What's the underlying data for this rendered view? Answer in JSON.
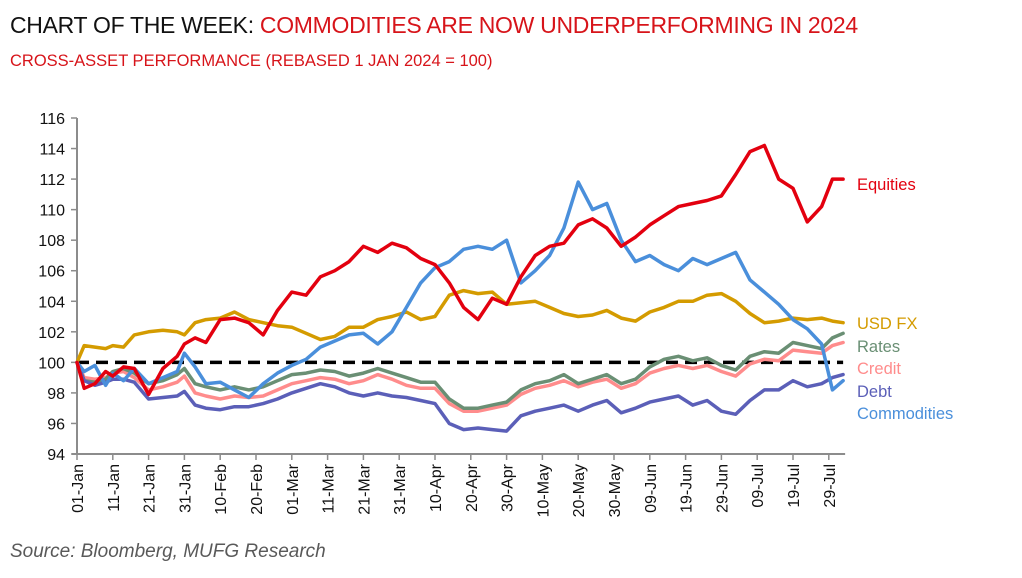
{
  "header": {
    "title_lead": "CHART OF THE WEEK:",
    "title_rest": "COMMODITIES ARE NOW UNDERPERFORMING IN 2024",
    "subtitle": "CROSS-ASSET PERFORMANCE (REBASED 1 JAN 2024 = 100)"
  },
  "footer": {
    "source": "Source: Bloomberg, MUFG Research"
  },
  "chart_data": {
    "type": "line",
    "title": "CROSS-ASSET PERFORMANCE (REBASED 1 JAN 2024 = 100)",
    "xlabel": "",
    "ylabel": "",
    "ylim": [
      94,
      116
    ],
    "yticks": [
      94,
      96,
      98,
      100,
      102,
      104,
      106,
      108,
      110,
      112,
      114,
      116
    ],
    "xlim_days": [
      0,
      214
    ],
    "xticks": [
      {
        "day": 0,
        "label": "01-Jan"
      },
      {
        "day": 10,
        "label": "11-Jan"
      },
      {
        "day": 20,
        "label": "21-Jan"
      },
      {
        "day": 30,
        "label": "31-Jan"
      },
      {
        "day": 40,
        "label": "10-Feb"
      },
      {
        "day": 50,
        "label": "20-Feb"
      },
      {
        "day": 60,
        "label": "01-Mar"
      },
      {
        "day": 70,
        "label": "11-Mar"
      },
      {
        "day": 80,
        "label": "21-Mar"
      },
      {
        "day": 90,
        "label": "31-Mar"
      },
      {
        "day": 100,
        "label": "10-Apr"
      },
      {
        "day": 110,
        "label": "20-Apr"
      },
      {
        "day": 120,
        "label": "30-Apr"
      },
      {
        "day": 130,
        "label": "10-May"
      },
      {
        "day": 140,
        "label": "20-May"
      },
      {
        "day": 150,
        "label": "30-May"
      },
      {
        "day": 160,
        "label": "09-Jun"
      },
      {
        "day": 170,
        "label": "19-Jun"
      },
      {
        "day": 180,
        "label": "29-Jun"
      },
      {
        "day": 190,
        "label": "09-Jul"
      },
      {
        "day": 200,
        "label": "19-Jul"
      },
      {
        "day": 210,
        "label": "29-Jul"
      }
    ],
    "reference_line": {
      "value": 100,
      "style": "dashed",
      "color": "#000000"
    },
    "x_days": [
      0,
      2,
      5,
      8,
      10,
      13,
      16,
      20,
      24,
      28,
      30,
      33,
      36,
      40,
      44,
      48,
      52,
      56,
      60,
      64,
      68,
      72,
      76,
      80,
      84,
      88,
      92,
      96,
      100,
      104,
      108,
      112,
      116,
      120,
      124,
      128,
      132,
      136,
      140,
      144,
      148,
      152,
      156,
      160,
      164,
      168,
      172,
      176,
      180,
      184,
      188,
      192,
      196,
      200,
      204,
      208,
      211,
      214
    ],
    "series": [
      {
        "name": "Equities",
        "color": "#e3000f",
        "values": [
          100,
          98.3,
          98.6,
          99.4,
          99.1,
          99.7,
          99.6,
          97.9,
          99.6,
          100.4,
          101.2,
          101.6,
          101.3,
          102.8,
          102.9,
          102.6,
          101.8,
          103.4,
          104.6,
          104.4,
          105.6,
          106.0,
          106.6,
          107.6,
          107.2,
          107.8,
          107.5,
          106.8,
          106.4,
          105.2,
          103.6,
          102.8,
          104.2,
          103.8,
          105.6,
          107.0,
          107.6,
          107.8,
          109.0,
          109.4,
          108.8,
          107.6,
          108.2,
          109.0,
          109.6,
          110.2,
          110.4,
          110.6,
          110.9,
          112.3,
          113.8,
          114.2,
          112.0,
          111.4,
          109.2,
          110.2,
          112.0,
          112.0
        ]
      },
      {
        "name": "USD FX",
        "color": "#d49b00",
        "values": [
          100,
          101.1,
          101.0,
          100.9,
          101.1,
          101.0,
          101.8,
          102.0,
          102.1,
          102.0,
          101.8,
          102.6,
          102.8,
          102.9,
          103.3,
          102.8,
          102.6,
          102.4,
          102.3,
          101.9,
          101.5,
          101.7,
          102.3,
          102.3,
          102.8,
          103.0,
          103.3,
          102.8,
          103.0,
          104.4,
          104.7,
          104.5,
          104.6,
          103.8,
          103.9,
          104.0,
          103.6,
          103.2,
          103.0,
          103.1,
          103.4,
          102.9,
          102.7,
          103.3,
          103.6,
          104.0,
          104.0,
          104.4,
          104.5,
          104.0,
          103.2,
          102.6,
          102.7,
          102.9,
          102.8,
          102.9,
          102.7,
          102.6
        ]
      },
      {
        "name": "Rates",
        "color": "#6a8f74",
        "values": [
          100,
          98.8,
          98.7,
          98.9,
          99.4,
          99.6,
          99.3,
          98.6,
          98.8,
          99.2,
          99.6,
          98.6,
          98.4,
          98.2,
          98.4,
          98.2,
          98.4,
          98.8,
          99.2,
          99.3,
          99.5,
          99.4,
          99.1,
          99.3,
          99.6,
          99.3,
          99.0,
          98.7,
          98.7,
          97.6,
          97.0,
          97.0,
          97.2,
          97.4,
          98.2,
          98.6,
          98.8,
          99.2,
          98.6,
          98.9,
          99.2,
          98.6,
          98.9,
          99.7,
          100.2,
          100.4,
          100.1,
          100.3,
          99.8,
          99.5,
          100.4,
          100.7,
          100.6,
          101.3,
          101.1,
          100.9,
          101.6,
          101.9
        ]
      },
      {
        "name": "Credit",
        "color": "#ff8c8c",
        "values": [
          100,
          99.0,
          98.9,
          99.0,
          99.3,
          99.4,
          99.0,
          98.2,
          98.4,
          98.7,
          99.1,
          98.0,
          97.8,
          97.6,
          97.8,
          97.7,
          97.8,
          98.2,
          98.6,
          98.8,
          99.0,
          98.9,
          98.6,
          98.8,
          99.2,
          98.9,
          98.5,
          98.3,
          98.3,
          97.3,
          96.8,
          96.8,
          97.0,
          97.2,
          97.9,
          98.3,
          98.5,
          98.8,
          98.4,
          98.7,
          98.9,
          98.3,
          98.6,
          99.3,
          99.6,
          99.8,
          99.6,
          99.8,
          99.4,
          99.1,
          99.9,
          100.2,
          100.1,
          100.8,
          100.7,
          100.6,
          101.1,
          101.3
        ]
      },
      {
        "name": "Debt",
        "color": "#5b5fb8",
        "values": [
          100,
          98.8,
          98.5,
          98.7,
          98.9,
          98.9,
          98.7,
          97.6,
          97.7,
          97.8,
          98.1,
          97.2,
          97.0,
          96.9,
          97.1,
          97.1,
          97.3,
          97.6,
          98.0,
          98.3,
          98.6,
          98.4,
          98.0,
          97.8,
          98.0,
          97.8,
          97.7,
          97.5,
          97.3,
          96.0,
          95.6,
          95.7,
          95.6,
          95.5,
          96.5,
          96.8,
          97.0,
          97.2,
          96.8,
          97.2,
          97.5,
          96.7,
          97.0,
          97.4,
          97.6,
          97.8,
          97.2,
          97.5,
          96.8,
          96.6,
          97.5,
          98.2,
          98.2,
          98.8,
          98.4,
          98.6,
          99.0,
          99.2
        ]
      },
      {
        "name": "Commodities",
        "color": "#4a8fdb",
        "values": [
          100,
          99.4,
          99.8,
          98.5,
          99.3,
          98.8,
          99.6,
          98.6,
          99.0,
          99.4,
          100.6,
          99.7,
          98.6,
          98.7,
          98.2,
          97.7,
          98.6,
          99.3,
          99.8,
          100.2,
          101.0,
          101.4,
          101.8,
          101.9,
          101.2,
          102.0,
          103.6,
          105.2,
          106.2,
          106.6,
          107.4,
          107.6,
          107.4,
          108.0,
          105.2,
          106.0,
          107.0,
          108.8,
          111.8,
          110.0,
          110.4,
          108.0,
          106.6,
          107.0,
          106.4,
          106.0,
          106.8,
          106.4,
          106.8,
          107.2,
          105.4,
          104.6,
          103.8,
          102.8,
          102.2,
          101.2,
          98.2,
          98.8
        ]
      }
    ],
    "legend": [
      {
        "label": "Equities",
        "color": "#e3000f"
      },
      {
        "label": "USD FX",
        "color": "#d49b00"
      },
      {
        "label": "Rates",
        "color": "#6a8f74"
      },
      {
        "label": "Credit",
        "color": "#ff8c8c"
      },
      {
        "label": "Debt",
        "color": "#5b5fb8"
      },
      {
        "label": "Commodities",
        "color": "#4a8fdb"
      }
    ],
    "legend_placement": "right, labels at line ends",
    "grid": false
  }
}
